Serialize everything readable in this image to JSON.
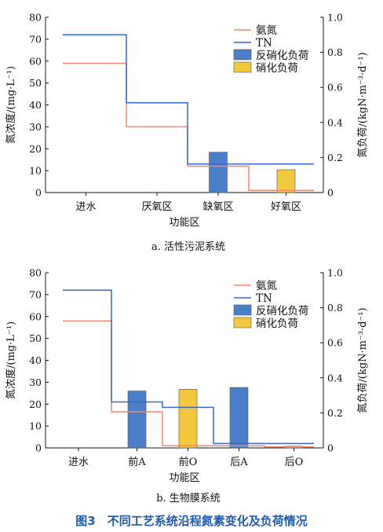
{
  "figure_caption": "图3　不同工艺系统沿程氮素变化及负荷情况",
  "colors": {
    "ammonia": "#f08770",
    "tn": "#3a66c4",
    "denit_bar": "#4a7ec9",
    "nit_bar": "#f2c83e",
    "axis": "#111111"
  },
  "chart_data": [
    {
      "type": "bar+step-line",
      "caption": "a. 活性污泥系统",
      "xlabel": "功能区",
      "ylabel_left": "氮浓度/(mg·L⁻¹)",
      "ylabel_right": "氮负荷/(kgN·m⁻³·d⁻¹)",
      "ylim_left": [
        0,
        80
      ],
      "ylim_right": [
        0,
        1.0
      ],
      "yticks_left": [
        "0",
        "10",
        "20",
        "30",
        "40",
        "50",
        "60",
        "70",
        "80"
      ],
      "yticks_right": [
        "0",
        "0.2",
        "0.4",
        "0.6",
        "0.8",
        "1.0"
      ],
      "categories": [
        "进水",
        "厌氧区",
        "缺氧区",
        "好氧区"
      ],
      "legend_position": "top-right",
      "legend": [
        "氨氮",
        "TN",
        "反硝化负荷",
        "硝化负荷"
      ],
      "lines": [
        {
          "name": "氨氮",
          "values": [
            59,
            30,
            12,
            1
          ]
        },
        {
          "name": "TN",
          "values": [
            72,
            41,
            13,
            13
          ]
        }
      ],
      "bars": [
        {
          "name": "反硝化负荷",
          "values": [
            null,
            null,
            0.23,
            null
          ]
        },
        {
          "name": "硝化负荷",
          "values": [
            null,
            null,
            null,
            0.13
          ]
        }
      ]
    },
    {
      "type": "bar+step-line",
      "caption": "b. 生物膜系统",
      "xlabel": "功能区",
      "ylabel_left": "氮浓度/(mg·L⁻¹)",
      "ylabel_right": "氮负荷/(kgN·m⁻³·d⁻¹)",
      "ylim_left": [
        0,
        80
      ],
      "ylim_right": [
        0,
        1.0
      ],
      "yticks_left": [
        "0",
        "10",
        "20",
        "30",
        "40",
        "50",
        "60",
        "70",
        "80"
      ],
      "yticks_right": [
        "0",
        "0.2",
        "0.4",
        "0.6",
        "0.8",
        "1.0"
      ],
      "categories": [
        "进水",
        "前A",
        "前O",
        "后A",
        "后O"
      ],
      "legend_position": "top-right",
      "legend": [
        "氨氮",
        "TN",
        "反硝化负荷",
        "硝化负荷"
      ],
      "lines": [
        {
          "name": "氨氮",
          "values": [
            58,
            16.5,
            1,
            1,
            0.5
          ]
        },
        {
          "name": "TN",
          "values": [
            72,
            21,
            18.5,
            2,
            2
          ]
        }
      ],
      "bars": [
        {
          "name": "反硝化负荷",
          "values": [
            null,
            0.325,
            null,
            0.345,
            null
          ]
        },
        {
          "name": "硝化负荷",
          "values": [
            null,
            null,
            0.335,
            null,
            0.01
          ]
        }
      ]
    }
  ]
}
